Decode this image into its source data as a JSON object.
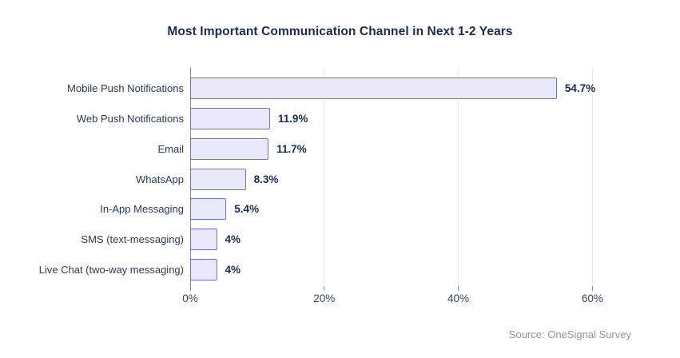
{
  "title": "Most Important Communication Channel in Next 1-2 Years",
  "source": "Source: OneSignal Survey",
  "chart_data": {
    "type": "bar",
    "orientation": "horizontal",
    "title": "Most Important Communication Channel in Next 1-2 Years",
    "categories": [
      "Mobile Push Notifications",
      "Web Push Notifications",
      "Email",
      "WhatsApp",
      "In-App Messaging",
      "SMS (text-messaging)",
      "Live Chat (two-way messaging)"
    ],
    "values": [
      54.7,
      11.9,
      11.7,
      8.3,
      5.4,
      4,
      4
    ],
    "value_labels": [
      "54.7%",
      "11.9%",
      "11.7%",
      "8.3%",
      "5.4%",
      "4%",
      "4%"
    ],
    "x_ticks": [
      0,
      20,
      40,
      60
    ],
    "x_tick_labels": [
      "0%",
      "20%",
      "40%",
      "60%"
    ],
    "xlim": [
      0,
      65.8
    ],
    "grid": "vertical-only",
    "legend": "none",
    "annotation_source": "Source: OneSignal Survey",
    "colors": {
      "bar_fill": "#E9E9FC",
      "bar_border": "#7170CE",
      "title_text": "#1B2B4D",
      "category_text": "#2B3A55",
      "value_text": "#1B2B4D",
      "tick_text": "#37455C",
      "gridline": "#ECECF1",
      "axis_line": "#8B90A0",
      "source_text": "#8C96A5",
      "background": "#FFFFFF"
    }
  }
}
